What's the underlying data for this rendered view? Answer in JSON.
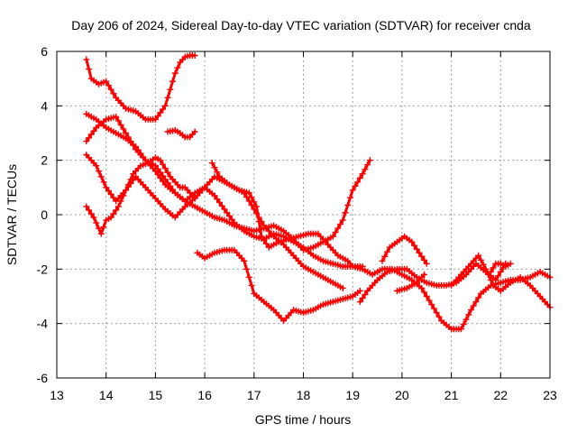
{
  "chart_data": {
    "type": "scatter",
    "title": "Day 206 of 2024, Sidereal Day-to-day VTEC variation (SDTVAR) for receiver cnda",
    "xlabel": "GPS time / hours",
    "ylabel": "SDTVAR / TECUs",
    "xlim": [
      13,
      23
    ],
    "ylim": [
      -6,
      6
    ],
    "xticks": [
      13,
      14,
      15,
      16,
      17,
      18,
      19,
      20,
      21,
      22,
      23
    ],
    "yticks": [
      -6,
      -4,
      -2,
      0,
      2,
      4,
      6
    ],
    "grid": true,
    "legend": "none",
    "marker": "plus",
    "color": "#ff0000",
    "series": [
      {
        "x": [
          13.6,
          13.7,
          13.85,
          14.0,
          14.2,
          14.4,
          14.6,
          14.8,
          15.0,
          15.2,
          15.3,
          15.4,
          15.5,
          15.6,
          15.7,
          15.8
        ],
        "y": [
          5.7,
          5.0,
          4.8,
          4.9,
          4.3,
          3.9,
          3.8,
          3.5,
          3.5,
          4.0,
          4.6,
          5.2,
          5.6,
          5.8,
          5.85,
          5.85
        ]
      },
      {
        "x": [
          13.6,
          13.8,
          14.0,
          14.2,
          14.4,
          14.6,
          14.8,
          15.0,
          15.2,
          15.4,
          15.6,
          15.8,
          16.0,
          16.2,
          16.4,
          16.6,
          16.8,
          17.0,
          17.2,
          17.4,
          17.6,
          17.8,
          18.0,
          18.2,
          18.4,
          18.6,
          18.8,
          19.0,
          19.2,
          19.4,
          19.6,
          19.8,
          20.0,
          20.2,
          20.4,
          20.6,
          20.8,
          21.0,
          21.2,
          21.4,
          21.6,
          21.8,
          22.0,
          22.2,
          22.4,
          22.6,
          22.8,
          23.0
        ],
        "y": [
          2.7,
          3.2,
          3.5,
          3.6,
          3.0,
          2.4,
          2.0,
          1.8,
          1.3,
          0.8,
          0.5,
          0.8,
          1.0,
          0.7,
          0.2,
          -0.3,
          -0.6,
          -0.8,
          -0.9,
          -0.7,
          -0.8,
          -1.0,
          -1.2,
          -1.5,
          -1.7,
          -1.8,
          -1.9,
          -1.9,
          -2.0,
          -2.2,
          -2.0,
          -2.0,
          -2.2,
          -2.4,
          -2.7,
          -3.3,
          -3.9,
          -4.2,
          -4.2,
          -3.5,
          -2.9,
          -2.6,
          -2.5,
          -2.4,
          -2.4,
          -2.3,
          -2.1,
          -2.3
        ]
      },
      {
        "x": [
          13.6,
          13.8,
          14.0,
          14.2,
          14.4,
          14.6,
          14.8,
          15.0,
          15.2,
          15.4,
          15.6,
          15.8,
          16.0,
          16.2,
          16.4,
          16.6,
          16.8,
          17.0,
          17.2,
          17.4,
          17.6,
          17.8,
          18.0,
          18.2,
          18.4,
          18.6,
          18.8,
          19.0,
          19.2,
          19.35
        ],
        "y": [
          3.7,
          3.5,
          3.2,
          3.0,
          2.8,
          2.5,
          2.0,
          1.6,
          1.1,
          0.8,
          0.5,
          0.3,
          0.1,
          -0.1,
          -0.2,
          -0.4,
          -0.5,
          -0.6,
          -0.5,
          -0.4,
          -0.6,
          -0.9,
          -1.3,
          -1.2,
          -1.0,
          -0.8,
          -0.2,
          0.9,
          1.5,
          2.0
        ]
      },
      {
        "x": [
          13.6,
          13.8,
          14.0,
          14.2,
          14.4,
          14.6,
          14.8,
          15.0,
          15.2,
          15.4,
          15.6,
          15.8,
          16.0,
          16.2,
          16.4,
          16.6,
          16.8,
          17.0,
          17.2,
          17.4,
          17.6,
          17.8,
          18.0,
          18.2,
          18.4,
          18.6,
          18.8
        ],
        "y": [
          2.2,
          1.8,
          1.0,
          0.5,
          0.9,
          1.4,
          1.0,
          0.6,
          0.2,
          -0.1,
          0.3,
          0.6,
          1.0,
          1.4,
          1.2,
          1.0,
          0.8,
          0.2,
          -0.4,
          -0.8,
          -1.1,
          -1.5,
          -1.9,
          -2.1,
          -2.3,
          -2.5,
          -2.7
        ]
      },
      {
        "x": [
          13.6,
          13.75,
          13.9,
          14.0,
          14.1,
          14.25,
          14.4,
          14.55,
          14.7,
          14.85,
          15.0,
          15.1,
          15.2,
          15.3,
          15.4,
          15.5,
          15.6,
          15.7,
          15.8
        ],
        "y": [
          0.3,
          -0.1,
          -0.7,
          -0.2,
          -0.1,
          0.3,
          0.9,
          1.5,
          1.8,
          1.9,
          2.1,
          2.0,
          1.7,
          1.4,
          1.2,
          1.0,
          1.0,
          0.8,
          0.6
        ]
      },
      {
        "x": [
          15.25,
          15.4,
          15.5,
          15.6,
          15.7,
          15.8
        ],
        "y": [
          3.05,
          3.1,
          3.0,
          2.85,
          2.85,
          3.05
        ]
      },
      {
        "x": [
          16.15,
          16.3,
          16.5,
          16.7,
          16.9,
          17.05,
          17.15,
          17.3,
          17.5,
          17.7,
          17.9,
          18.1,
          18.3,
          18.5,
          18.7,
          18.9,
          19.0,
          19.1,
          19.2
        ],
        "y": [
          1.9,
          1.4,
          1.1,
          0.9,
          0.8,
          0.3,
          -0.8,
          -1.2,
          -1.0,
          -0.9,
          -0.8,
          -0.7,
          -0.7,
          -1.1,
          -1.5,
          -1.7,
          -1.9,
          -1.9,
          -1.9
        ]
      },
      {
        "x": [
          15.85,
          16.0,
          16.2,
          16.4,
          16.6,
          16.8,
          16.9,
          17.0,
          17.2,
          17.4,
          17.6,
          17.8,
          18.0,
          18.2,
          18.4,
          18.6,
          18.8,
          19.0,
          19.15
        ],
        "y": [
          -1.4,
          -1.6,
          -1.4,
          -1.3,
          -1.3,
          -1.7,
          -2.3,
          -2.9,
          -3.2,
          -3.5,
          -3.9,
          -3.5,
          -3.6,
          -3.5,
          -3.3,
          -3.2,
          -3.1,
          -3.0,
          -2.8
        ]
      },
      {
        "x": [
          19.15,
          19.3,
          19.5,
          19.7,
          19.9,
          20.1,
          20.3,
          20.5,
          20.7,
          20.9,
          21.1,
          21.3,
          21.5,
          21.7,
          21.9,
          22.1
        ],
        "y": [
          -3.2,
          -2.8,
          -2.4,
          -2.1,
          -2.0,
          -2.0,
          -2.3,
          -2.5,
          -2.6,
          -2.6,
          -2.5,
          -2.2,
          -1.8,
          -2.1,
          -2.4,
          -1.8
        ]
      },
      {
        "x": [
          19.9,
          20.1,
          20.3,
          20.45
        ],
        "y": [
          -2.8,
          -2.7,
          -2.5,
          -2.2
        ]
      },
      {
        "x": [
          19.6,
          19.75,
          19.9,
          20.05,
          20.2,
          20.35,
          20.5
        ],
        "y": [
          -1.7,
          -1.2,
          -1.0,
          -0.8,
          -1.0,
          -1.4,
          -1.8
        ]
      },
      {
        "x": [
          21.0,
          21.2,
          21.4,
          21.55,
          21.7,
          21.85,
          22.0,
          22.2,
          22.4,
          22.6,
          22.8,
          23.0
        ],
        "y": [
          -2.6,
          -2.2,
          -1.8,
          -1.5,
          -2.0,
          -2.6,
          -2.8,
          -2.5,
          -2.3,
          -2.6,
          -3.0,
          -3.4
        ]
      },
      {
        "x": [
          21.8,
          21.9,
          22.0,
          22.1,
          22.2
        ],
        "y": [
          -2.1,
          -1.8,
          -1.8,
          -1.9,
          -1.8
        ]
      }
    ]
  }
}
